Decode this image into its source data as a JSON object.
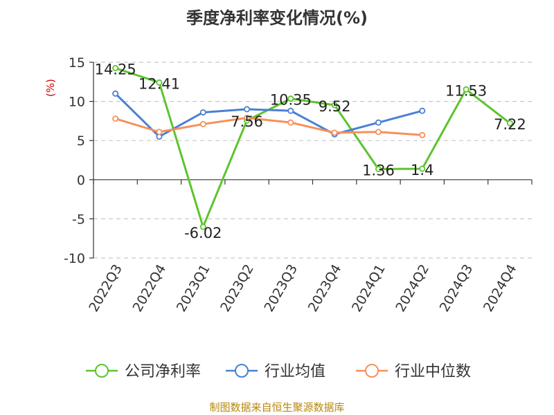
{
  "chart_data": {
    "type": "line",
    "title": "季度净利率变化情况(%)",
    "ylabel": "(%)",
    "categories": [
      "2022Q3",
      "2022Q4",
      "2023Q1",
      "2023Q2",
      "2023Q3",
      "2023Q4",
      "2024Q1",
      "2024Q2",
      "2024Q3",
      "2024Q4"
    ],
    "ylim": [
      -10,
      15
    ],
    "yticks": [
      -10,
      -5,
      0,
      5,
      10,
      15
    ],
    "grid": true,
    "legend_position": "bottom",
    "series": [
      {
        "name": "公司净利率",
        "color": "#5cc42d",
        "values": [
          14.25,
          12.41,
          -6.02,
          7.56,
          10.35,
          9.52,
          1.36,
          1.4,
          11.53,
          7.22
        ],
        "labels": [
          "14.25",
          "12.41",
          "-6.02",
          "7.56",
          "10.35",
          "9.52",
          "1.36",
          "1.4",
          "11.53",
          "7.22"
        ]
      },
      {
        "name": "行业均值",
        "color": "#4a7fd4",
        "values": [
          11.0,
          5.5,
          8.6,
          9.0,
          8.8,
          5.8,
          7.3,
          8.8,
          null,
          null
        ]
      },
      {
        "name": "行业中位数",
        "color": "#f5905a",
        "values": [
          7.8,
          6.1,
          7.1,
          7.9,
          7.3,
          6.0,
          6.1,
          5.7,
          null,
          null
        ]
      }
    ]
  },
  "source_note": "制图数据来自恒生聚源数据库"
}
